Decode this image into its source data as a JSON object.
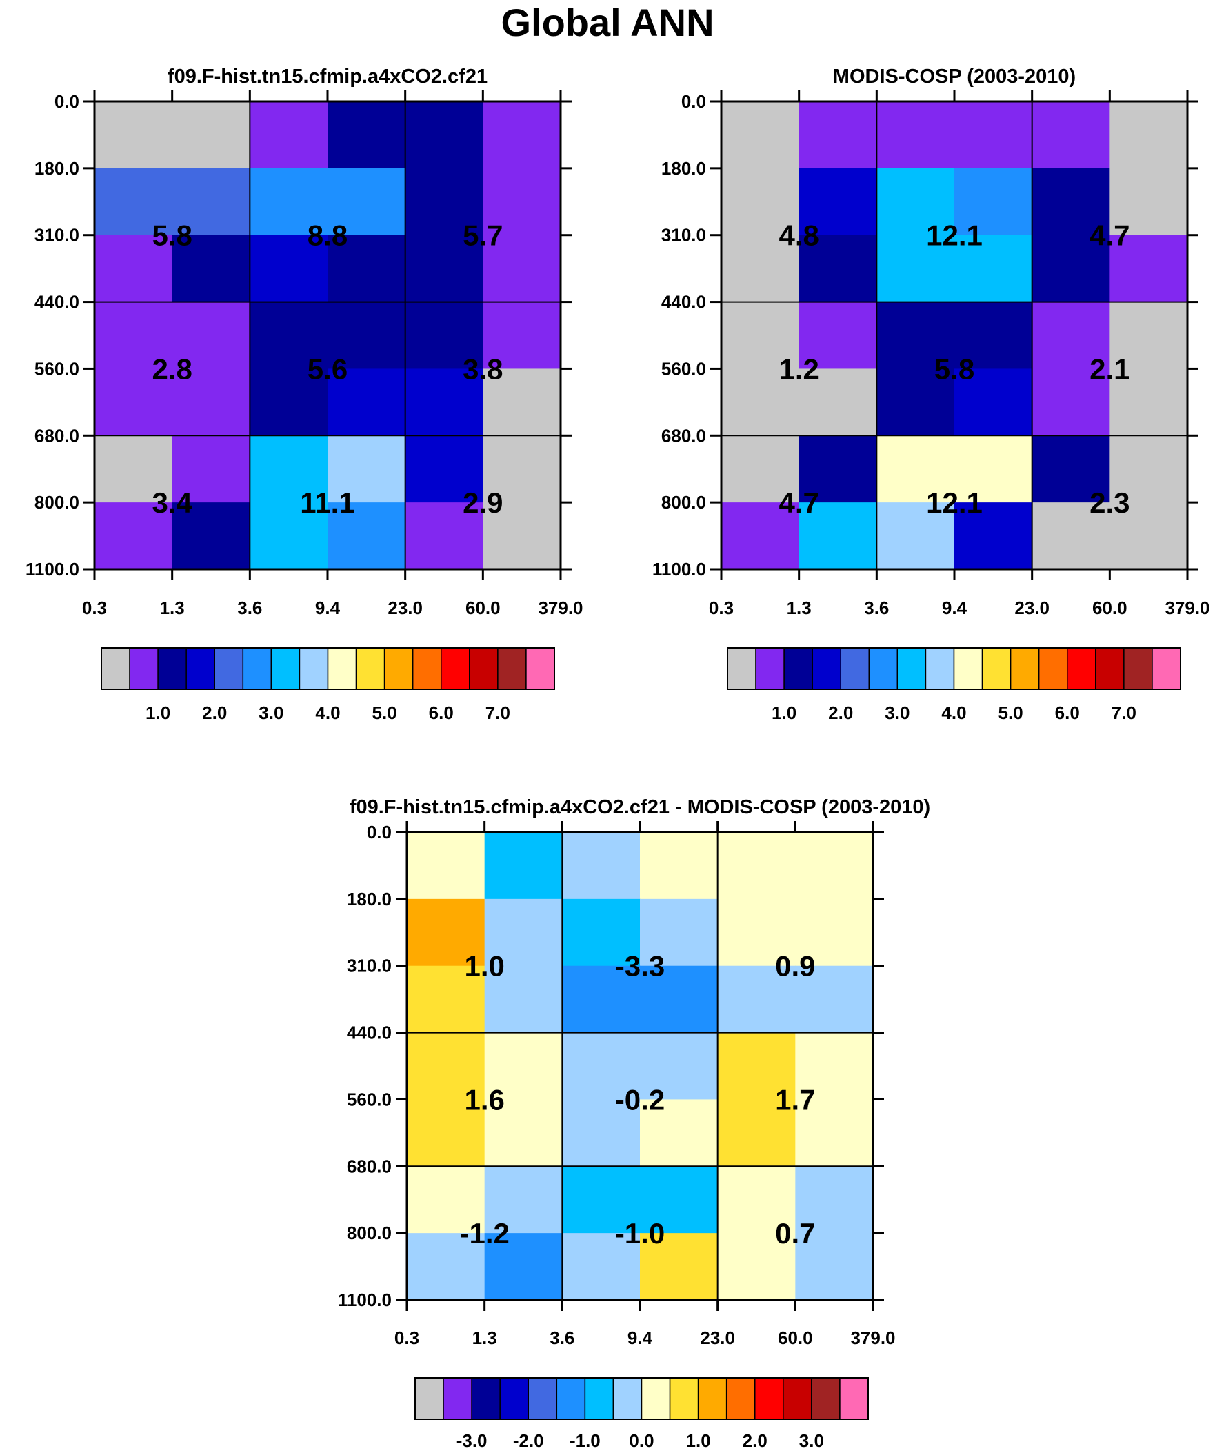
{
  "title": "Global ANN",
  "chart_data": [
    {
      "type": "heatmap",
      "title": "f09.F-hist.tn15.cfmip.a4xCO2.cf21",
      "x_ticks": [
        "0.3",
        "1.3",
        "3.6",
        "9.4",
        "23.0",
        "60.0",
        "379.0"
      ],
      "y_ticks": [
        "0.0",
        "180.0",
        "310.0",
        "440.0",
        "560.0",
        "680.0",
        "800.0",
        "1100.0"
      ],
      "cells": [
        [
          -1,
          -1,
          0,
          1,
          1,
          0
        ],
        [
          3,
          3,
          4,
          4,
          1,
          0
        ],
        [
          0,
          1,
          2,
          1,
          1,
          0
        ],
        [
          0,
          0,
          1,
          1,
          1,
          0
        ],
        [
          0,
          0,
          1,
          2,
          2,
          -1
        ],
        [
          -1,
          0,
          5,
          6,
          2,
          -1
        ],
        [
          0,
          1,
          5,
          4,
          0,
          -1
        ]
      ],
      "block_values": [
        [
          "5.8",
          "8.8",
          "5.7"
        ],
        [
          "2.8",
          "5.6",
          "3.8"
        ],
        [
          "3.4",
          "11.1",
          "2.9"
        ]
      ],
      "colorbar": {
        "colors": [
          "#c8c8c8",
          "#8228f0",
          "#000096",
          "#0000cd",
          "#4169e1",
          "#1e90ff",
          "#00bfff",
          "#a0d2ff",
          "#ffffc8",
          "#ffe132",
          "#ffaa00",
          "#ff6e00",
          "#ff0000",
          "#c80000",
          "#a02323",
          "#ff69b4"
        ],
        "labels": [
          "1.0",
          "2.0",
          "3.0",
          "4.0",
          "5.0",
          "6.0",
          "7.0"
        ]
      }
    },
    {
      "type": "heatmap",
      "title": "MODIS-COSP (2003-2010)",
      "x_ticks": [
        "0.3",
        "1.3",
        "3.6",
        "9.4",
        "23.0",
        "60.0",
        "379.0"
      ],
      "y_ticks": [
        "0.0",
        "180.0",
        "310.0",
        "440.0",
        "560.0",
        "680.0",
        "800.0",
        "1100.0"
      ],
      "cells": [
        [
          -1,
          0,
          0,
          0,
          0,
          -1
        ],
        [
          -1,
          2,
          5,
          4,
          1,
          -1
        ],
        [
          -1,
          1,
          5,
          5,
          1,
          0
        ],
        [
          -1,
          0,
          1,
          1,
          0,
          -1
        ],
        [
          -1,
          -1,
          1,
          2,
          0,
          -1
        ],
        [
          -1,
          1,
          7,
          7,
          1,
          -1
        ],
        [
          0,
          5,
          6,
          2,
          -1,
          -1
        ]
      ],
      "block_values": [
        [
          "4.8",
          "12.1",
          "4.7"
        ],
        [
          "1.2",
          "5.8",
          "2.1"
        ],
        [
          "4.7",
          "12.1",
          "2.3"
        ]
      ],
      "colorbar": {
        "colors": [
          "#c8c8c8",
          "#8228f0",
          "#000096",
          "#0000cd",
          "#4169e1",
          "#1e90ff",
          "#00bfff",
          "#a0d2ff",
          "#ffffc8",
          "#ffe132",
          "#ffaa00",
          "#ff6e00",
          "#ff0000",
          "#c80000",
          "#a02323",
          "#ff69b4"
        ],
        "labels": [
          "1.0",
          "2.0",
          "3.0",
          "4.0",
          "5.0",
          "6.0",
          "7.0"
        ]
      }
    },
    {
      "type": "heatmap",
      "title": "f09.F-hist.tn15.cfmip.a4xCO2.cf21 - MODIS-COSP (2003-2010)",
      "x_ticks": [
        "0.3",
        "1.3",
        "3.6",
        "9.4",
        "23.0",
        "60.0",
        "379.0"
      ],
      "y_ticks": [
        "0.0",
        "180.0",
        "310.0",
        "440.0",
        "560.0",
        "680.0",
        "800.0",
        "1100.0"
      ],
      "cells": [
        [
          7,
          5,
          6,
          7,
          7,
          7
        ],
        [
          9,
          6,
          5,
          6,
          7,
          7
        ],
        [
          8,
          6,
          4,
          4,
          6,
          6
        ],
        [
          8,
          7,
          6,
          6,
          8,
          7
        ],
        [
          8,
          7,
          6,
          7,
          8,
          7
        ],
        [
          7,
          6,
          5,
          5,
          7,
          6
        ],
        [
          6,
          4,
          6,
          8,
          7,
          6
        ]
      ],
      "block_values": [
        [
          "1.0",
          "-3.3",
          "0.9"
        ],
        [
          "1.6",
          "-0.2",
          "1.7"
        ],
        [
          "-1.2",
          "-1.0",
          "0.7"
        ]
      ],
      "colorbar": {
        "colors": [
          "#c8c8c8",
          "#8228f0",
          "#000096",
          "#0000cd",
          "#4169e1",
          "#1e90ff",
          "#00bfff",
          "#a0d2ff",
          "#ffffc8",
          "#ffe132",
          "#ffaa00",
          "#ff6e00",
          "#ff0000",
          "#c80000",
          "#a02323",
          "#ff69b4"
        ],
        "labels": [
          "-3.0",
          "-2.0",
          "-1.0",
          "0.0",
          "1.0",
          "2.0",
          "3.0"
        ]
      }
    }
  ]
}
